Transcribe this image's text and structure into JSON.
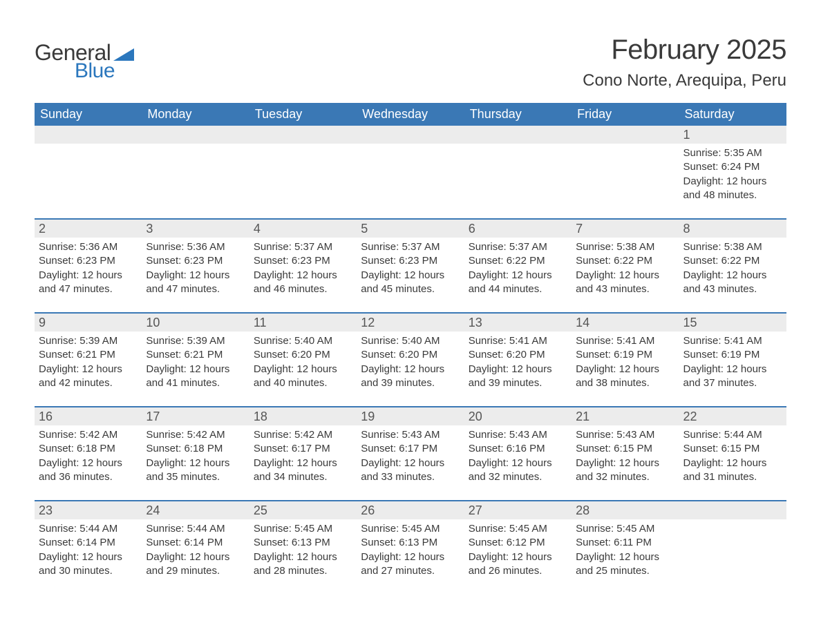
{
  "logo": {
    "word1": "General",
    "word2": "Blue"
  },
  "title": "February 2025",
  "location": "Cono Norte, Arequipa, Peru",
  "colors": {
    "brand_blue": "#2b77bd",
    "header_blue": "#3a78b5",
    "band_gray": "#ececec",
    "text": "#3a3a3a",
    "white": "#ffffff"
  },
  "dow": [
    "Sunday",
    "Monday",
    "Tuesday",
    "Wednesday",
    "Thursday",
    "Friday",
    "Saturday"
  ],
  "weeks": [
    [
      {
        "day": ""
      },
      {
        "day": ""
      },
      {
        "day": ""
      },
      {
        "day": ""
      },
      {
        "day": ""
      },
      {
        "day": ""
      },
      {
        "day": "1",
        "sunrise": "Sunrise: 5:35 AM",
        "sunset": "Sunset: 6:24 PM",
        "daylight": "Daylight: 12 hours and 48 minutes."
      }
    ],
    [
      {
        "day": "2",
        "sunrise": "Sunrise: 5:36 AM",
        "sunset": "Sunset: 6:23 PM",
        "daylight": "Daylight: 12 hours and 47 minutes."
      },
      {
        "day": "3",
        "sunrise": "Sunrise: 5:36 AM",
        "sunset": "Sunset: 6:23 PM",
        "daylight": "Daylight: 12 hours and 47 minutes."
      },
      {
        "day": "4",
        "sunrise": "Sunrise: 5:37 AM",
        "sunset": "Sunset: 6:23 PM",
        "daylight": "Daylight: 12 hours and 46 minutes."
      },
      {
        "day": "5",
        "sunrise": "Sunrise: 5:37 AM",
        "sunset": "Sunset: 6:23 PM",
        "daylight": "Daylight: 12 hours and 45 minutes."
      },
      {
        "day": "6",
        "sunrise": "Sunrise: 5:37 AM",
        "sunset": "Sunset: 6:22 PM",
        "daylight": "Daylight: 12 hours and 44 minutes."
      },
      {
        "day": "7",
        "sunrise": "Sunrise: 5:38 AM",
        "sunset": "Sunset: 6:22 PM",
        "daylight": "Daylight: 12 hours and 43 minutes."
      },
      {
        "day": "8",
        "sunrise": "Sunrise: 5:38 AM",
        "sunset": "Sunset: 6:22 PM",
        "daylight": "Daylight: 12 hours and 43 minutes."
      }
    ],
    [
      {
        "day": "9",
        "sunrise": "Sunrise: 5:39 AM",
        "sunset": "Sunset: 6:21 PM",
        "daylight": "Daylight: 12 hours and 42 minutes."
      },
      {
        "day": "10",
        "sunrise": "Sunrise: 5:39 AM",
        "sunset": "Sunset: 6:21 PM",
        "daylight": "Daylight: 12 hours and 41 minutes."
      },
      {
        "day": "11",
        "sunrise": "Sunrise: 5:40 AM",
        "sunset": "Sunset: 6:20 PM",
        "daylight": "Daylight: 12 hours and 40 minutes."
      },
      {
        "day": "12",
        "sunrise": "Sunrise: 5:40 AM",
        "sunset": "Sunset: 6:20 PM",
        "daylight": "Daylight: 12 hours and 39 minutes."
      },
      {
        "day": "13",
        "sunrise": "Sunrise: 5:41 AM",
        "sunset": "Sunset: 6:20 PM",
        "daylight": "Daylight: 12 hours and 39 minutes."
      },
      {
        "day": "14",
        "sunrise": "Sunrise: 5:41 AM",
        "sunset": "Sunset: 6:19 PM",
        "daylight": "Daylight: 12 hours and 38 minutes."
      },
      {
        "day": "15",
        "sunrise": "Sunrise: 5:41 AM",
        "sunset": "Sunset: 6:19 PM",
        "daylight": "Daylight: 12 hours and 37 minutes."
      }
    ],
    [
      {
        "day": "16",
        "sunrise": "Sunrise: 5:42 AM",
        "sunset": "Sunset: 6:18 PM",
        "daylight": "Daylight: 12 hours and 36 minutes."
      },
      {
        "day": "17",
        "sunrise": "Sunrise: 5:42 AM",
        "sunset": "Sunset: 6:18 PM",
        "daylight": "Daylight: 12 hours and 35 minutes."
      },
      {
        "day": "18",
        "sunrise": "Sunrise: 5:42 AM",
        "sunset": "Sunset: 6:17 PM",
        "daylight": "Daylight: 12 hours and 34 minutes."
      },
      {
        "day": "19",
        "sunrise": "Sunrise: 5:43 AM",
        "sunset": "Sunset: 6:17 PM",
        "daylight": "Daylight: 12 hours and 33 minutes."
      },
      {
        "day": "20",
        "sunrise": "Sunrise: 5:43 AM",
        "sunset": "Sunset: 6:16 PM",
        "daylight": "Daylight: 12 hours and 32 minutes."
      },
      {
        "day": "21",
        "sunrise": "Sunrise: 5:43 AM",
        "sunset": "Sunset: 6:15 PM",
        "daylight": "Daylight: 12 hours and 32 minutes."
      },
      {
        "day": "22",
        "sunrise": "Sunrise: 5:44 AM",
        "sunset": "Sunset: 6:15 PM",
        "daylight": "Daylight: 12 hours and 31 minutes."
      }
    ],
    [
      {
        "day": "23",
        "sunrise": "Sunrise: 5:44 AM",
        "sunset": "Sunset: 6:14 PM",
        "daylight": "Daylight: 12 hours and 30 minutes."
      },
      {
        "day": "24",
        "sunrise": "Sunrise: 5:44 AM",
        "sunset": "Sunset: 6:14 PM",
        "daylight": "Daylight: 12 hours and 29 minutes."
      },
      {
        "day": "25",
        "sunrise": "Sunrise: 5:45 AM",
        "sunset": "Sunset: 6:13 PM",
        "daylight": "Daylight: 12 hours and 28 minutes."
      },
      {
        "day": "26",
        "sunrise": "Sunrise: 5:45 AM",
        "sunset": "Sunset: 6:13 PM",
        "daylight": "Daylight: 12 hours and 27 minutes."
      },
      {
        "day": "27",
        "sunrise": "Sunrise: 5:45 AM",
        "sunset": "Sunset: 6:12 PM",
        "daylight": "Daylight: 12 hours and 26 minutes."
      },
      {
        "day": "28",
        "sunrise": "Sunrise: 5:45 AM",
        "sunset": "Sunset: 6:11 PM",
        "daylight": "Daylight: 12 hours and 25 minutes."
      },
      {
        "day": ""
      }
    ]
  ]
}
